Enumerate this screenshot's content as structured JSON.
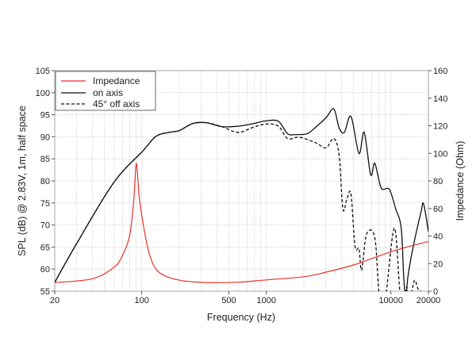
{
  "chart_data": {
    "type": "line",
    "xlabel": "Frequency (Hz)",
    "ylabel": "SPL (dB) @ 2.83V, 1m, half space",
    "y2label": "Impedance (Ohm)",
    "xscale": "log",
    "xlim": [
      20,
      20000
    ],
    "ylim": [
      55,
      105
    ],
    "y2lim": [
      0,
      160
    ],
    "grid": true,
    "legend": "top-left",
    "xticks": [
      "20",
      "100",
      "500",
      "1000",
      "10000",
      "20000"
    ],
    "xtick_values": [
      20,
      100,
      500,
      1000,
      10000,
      20000
    ],
    "yticks": [
      "55",
      "60",
      "65",
      "70",
      "75",
      "80",
      "85",
      "90",
      "95",
      "100",
      "105"
    ],
    "y2ticks": [
      "0",
      "20",
      "40",
      "60",
      "80",
      "100",
      "120",
      "140",
      "160"
    ],
    "colors": {
      "impedance": "#e8302a",
      "on_axis": "#111111",
      "off_axis": "#111111"
    },
    "series": [
      {
        "name": "Impedance",
        "axis": "right",
        "style": "solid",
        "x": [
          20,
          40,
          60,
          70,
          80,
          86,
          90.3,
          95,
          102,
          115,
          137,
          200,
          328,
          590,
          1000,
          2000,
          3010,
          5000,
          6880,
          11200,
          20000
        ],
        "y": [
          6.3,
          9,
          17.4,
          26,
          40.5,
          65,
          92.7,
          70,
          50,
          27,
          13.8,
          8,
          6.3,
          6.5,
          8.2,
          10.5,
          13.8,
          19,
          23.4,
          30,
          36
        ]
      },
      {
        "name": "on axis",
        "axis": "left",
        "style": "solid",
        "x": [
          20,
          30,
          59.5,
          102,
          130,
          166,
          200,
          256,
          328,
          440,
          592,
          793,
          990,
          1250,
          1479,
          1720,
          2130,
          2470,
          3010,
          3480,
          3840,
          4230,
          4780,
          5540,
          6100,
          6880,
          7420,
          8360,
          9700,
          10920,
          12100,
          12700,
          13200,
          13700,
          15000,
          17400,
          18300,
          20000
        ],
        "y": [
          57,
          65.8,
          79.6,
          86.8,
          90.1,
          91,
          91.4,
          93,
          93.2,
          92.3,
          92.4,
          93,
          93.6,
          93.5,
          90.7,
          90.5,
          90.7,
          92.1,
          94.3,
          96.3,
          92,
          91,
          94.6,
          86.2,
          91,
          81.4,
          84,
          78.4,
          78.1,
          73.7,
          69.3,
          57.8,
          54,
          58.3,
          64.7,
          72.8,
          74.8,
          68.5
        ]
      },
      {
        "name": "45° off axis",
        "axis": "left",
        "style": "dashed",
        "x": [
          20,
          30,
          59.5,
          102,
          130,
          166,
          200,
          256,
          328,
          440,
          592,
          793,
          1000,
          1250,
          1480,
          1840,
          2470,
          3010,
          3480,
          3840,
          4120,
          4440,
          4780,
          5150,
          5540,
          5820,
          6390,
          7420,
          8000,
          8600,
          9200,
          10670,
          11800,
          12500,
          13400,
          14000,
          15400,
          16500,
          17400
        ],
        "y": [
          57,
          65.8,
          79.6,
          86.8,
          90.1,
          91,
          91.4,
          93,
          93.2,
          92.3,
          91,
          92.2,
          92.9,
          92.4,
          89.6,
          89.9,
          88.7,
          87.5,
          89.6,
          85.8,
          73.6,
          76,
          77,
          65.2,
          64.6,
          59.8,
          68,
          67.2,
          55,
          50,
          55,
          69.3,
          55,
          52,
          56,
          52,
          57.4,
          55.5,
          55
        ]
      }
    ]
  }
}
